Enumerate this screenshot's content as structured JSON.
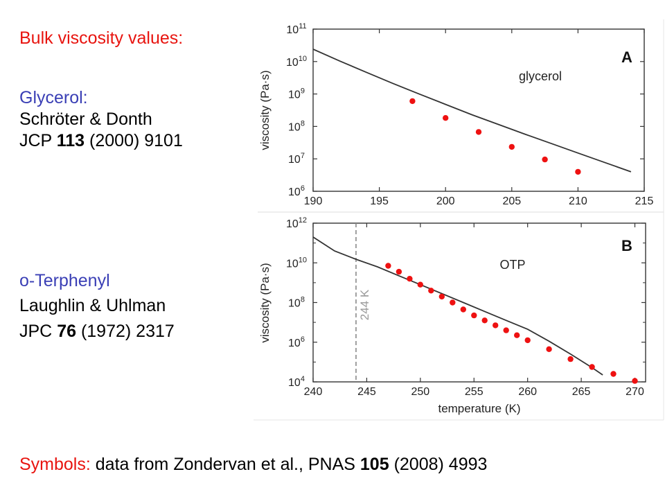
{
  "slide": {
    "heading": "Bulk viscosity values:",
    "glycerol_label": "Glycerol:",
    "glycerol_authors": "Schröter & Donth",
    "glycerol_journal": "JCP",
    "glycerol_volume": "113",
    "glycerol_rest": "(2000) 9101",
    "otp_label": "o-Terphenyl",
    "otp_authors": "Laughlin & Uhlman",
    "otp_journal": "JPC",
    "otp_volume": "76",
    "otp_rest": "(1972) 2317",
    "symbols_label": "Symbols:",
    "symbols_text": "data from Zondervan et al., PNAS",
    "symbols_volume": "105",
    "symbols_rest": "(2008) 4993"
  },
  "colors": {
    "red": "#e8140f",
    "blue": "#3a3fb5",
    "marker": "#ee1111",
    "curve": "#333333",
    "dashed": "#888888",
    "frame": "#333333"
  },
  "chart_data": [
    {
      "type": "scatter",
      "panel_letter": "A",
      "annotation": "glycerol",
      "xlabel": "",
      "ylabel": "viscosity (Pa·s)",
      "xlim": [
        190,
        215
      ],
      "ylim_log10": [
        6,
        11
      ],
      "yscale": "log",
      "xticks": [
        "190",
        "195",
        "200",
        "205",
        "210",
        "215"
      ],
      "yticks": [
        {
          "base": "10",
          "exp": "6"
        },
        {
          "base": "10",
          "exp": "7"
        },
        {
          "base": "10",
          "exp": "8"
        },
        {
          "base": "10",
          "exp": "9"
        },
        {
          "base": "10",
          "exp": "10"
        },
        {
          "base": "10",
          "exp": "11"
        }
      ],
      "series": [
        {
          "role": "curve",
          "x": [
            190,
            192,
            194,
            196,
            198,
            200,
            202,
            204,
            206,
            208,
            210,
            212,
            214
          ],
          "y_log10": [
            10.38,
            10.02,
            9.67,
            9.33,
            9.0,
            8.68,
            8.36,
            8.06,
            7.76,
            7.47,
            7.18,
            6.89,
            6.6
          ]
        },
        {
          "role": "markers",
          "x": [
            197.5,
            200.0,
            202.5,
            205.0,
            207.5,
            210.0
          ],
          "y_log10": [
            8.78,
            8.26,
            7.83,
            7.37,
            6.98,
            6.6
          ]
        }
      ]
    },
    {
      "type": "scatter",
      "panel_letter": "B",
      "annotation": "OTP",
      "vline_label": "244 K",
      "vline_x": 244,
      "xlabel": "temperature (K)",
      "ylabel": "viscosity (Pa·s)",
      "xlim": [
        240,
        271
      ],
      "ylim_log10": [
        4,
        12
      ],
      "yscale": "log",
      "xticks": [
        "240",
        "245",
        "250",
        "255",
        "260",
        "265",
        "270"
      ],
      "yticks": [
        {
          "base": "10",
          "exp": "4"
        },
        {
          "base": "10",
          "exp": "6"
        },
        {
          "base": "10",
          "exp": "8"
        },
        {
          "base": "10",
          "exp": "10"
        },
        {
          "base": "10",
          "exp": "12"
        }
      ],
      "series": [
        {
          "role": "curve",
          "x": [
            240,
            242,
            244,
            246,
            248,
            250,
            252,
            254,
            256,
            258,
            260,
            262,
            264,
            266,
            267
          ],
          "y_log10": [
            11.3,
            10.6,
            10.18,
            9.8,
            9.35,
            8.9,
            8.45,
            8.0,
            7.55,
            7.1,
            6.65,
            6.05,
            5.4,
            4.72,
            4.35
          ]
        },
        {
          "role": "markers",
          "x": [
            247,
            248,
            249,
            250,
            251,
            252,
            253,
            254,
            255,
            256,
            257,
            258,
            259,
            260,
            262,
            264,
            266,
            268,
            270
          ],
          "y_log10": [
            9.85,
            9.55,
            9.2,
            8.9,
            8.6,
            8.3,
            8.0,
            7.65,
            7.35,
            7.1,
            6.85,
            6.6,
            6.35,
            6.1,
            5.65,
            5.15,
            4.75,
            4.4,
            4.05
          ]
        }
      ]
    }
  ]
}
